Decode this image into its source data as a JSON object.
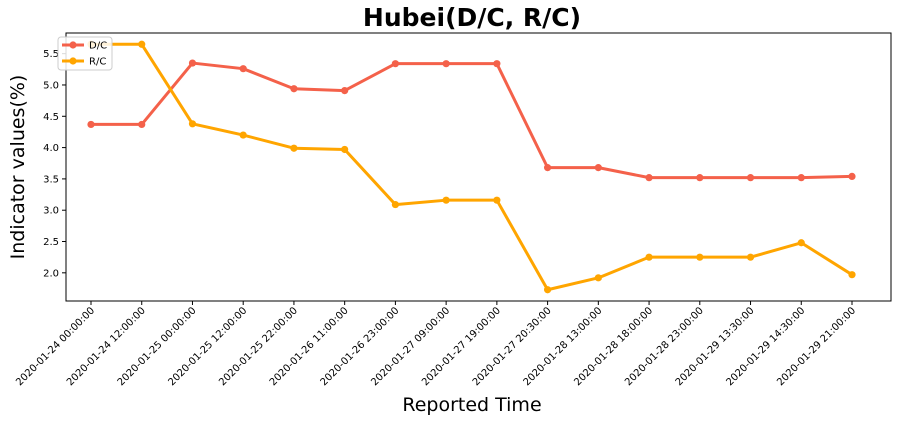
{
  "chart_data": {
    "type": "line",
    "title": "Hubei(D/C, R/C)",
    "xlabel": "Reported Time",
    "ylabel": "Indicator values(%)",
    "categories": [
      "2020-01-24 00:00:00",
      "2020-01-24 12:00:00",
      "2020-01-25 00:00:00",
      "2020-01-25 12:00:00",
      "2020-01-25 22:00:00",
      "2020-01-26 11:00:00",
      "2020-01-26 23:00:00",
      "2020-01-27 09:00:00",
      "2020-01-27 19:00:00",
      "2020-01-27 20:30:00",
      "2020-01-28 13:00:00",
      "2020-01-28 18:00:00",
      "2020-01-28 23:00:00",
      "2020-01-29 13:30:00",
      "2020-01-29 14:30:00",
      "2020-01-29 21:00:00"
    ],
    "series": [
      {
        "name": "D/C",
        "color": "#f4614a",
        "values": [
          4.37,
          4.37,
          5.35,
          5.26,
          4.94,
          4.91,
          5.34,
          5.34,
          5.34,
          3.68,
          3.68,
          3.52,
          3.52,
          3.52,
          3.52,
          3.54
        ]
      },
      {
        "name": "R/C",
        "color": "#ffa500",
        "values": [
          5.65,
          5.65,
          4.38,
          4.2,
          3.99,
          3.97,
          3.09,
          3.16,
          3.16,
          1.73,
          1.92,
          2.25,
          2.25,
          2.25,
          2.48,
          1.97
        ]
      }
    ],
    "yticks": [
      2.0,
      2.5,
      3.0,
      3.5,
      4.0,
      4.5,
      5.0,
      5.5
    ],
    "ylim": [
      1.55,
      5.83
    ],
    "grid": false,
    "legend": "top-left"
  }
}
